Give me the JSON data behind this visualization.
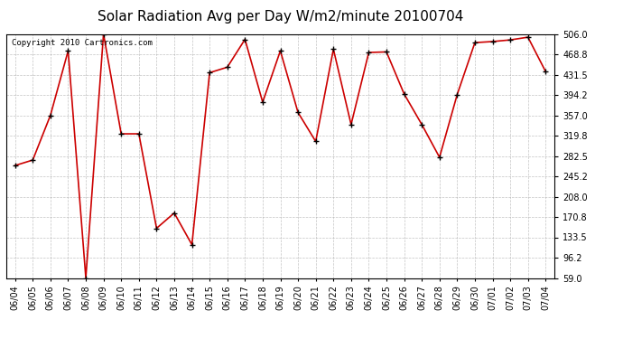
{
  "title": "Solar Radiation Avg per Day W/m2/minute 20100704",
  "copyright_text": "Copyright 2010 Cartronics.com",
  "dates": [
    "06/04",
    "06/05",
    "06/06",
    "06/07",
    "06/08",
    "06/09",
    "06/10",
    "06/11",
    "06/12",
    "06/13",
    "06/14",
    "06/15",
    "06/16",
    "06/17",
    "06/18",
    "06/19",
    "06/20",
    "06/21",
    "06/22",
    "06/23",
    "06/24",
    "06/25",
    "06/26",
    "06/27",
    "06/28",
    "06/29",
    "06/30",
    "07/01",
    "07/02",
    "07/03",
    "07/04"
  ],
  "values": [
    265.0,
    275.0,
    357.0,
    475.0,
    59.0,
    506.0,
    323.0,
    323.0,
    150.0,
    178.0,
    120.0,
    435.0,
    445.0,
    496.0,
    381.0,
    475.0,
    362.0,
    309.0,
    478.0,
    340.0,
    472.0,
    473.0,
    396.0,
    340.0,
    280.0,
    395.0,
    490.0,
    492.0,
    495.0,
    500.0,
    437.0
  ],
  "line_color": "#cc0000",
  "marker_color": "#000000",
  "bg_color": "#ffffff",
  "grid_color": "#aaaaaa",
  "yticks": [
    59.0,
    96.2,
    133.5,
    170.8,
    208.0,
    245.2,
    282.5,
    319.8,
    357.0,
    394.2,
    431.5,
    468.8,
    506.0
  ],
  "ymin": 59.0,
  "ymax": 506.0,
  "title_fontsize": 11,
  "tick_fontsize": 7,
  "copyright_fontsize": 6.5
}
